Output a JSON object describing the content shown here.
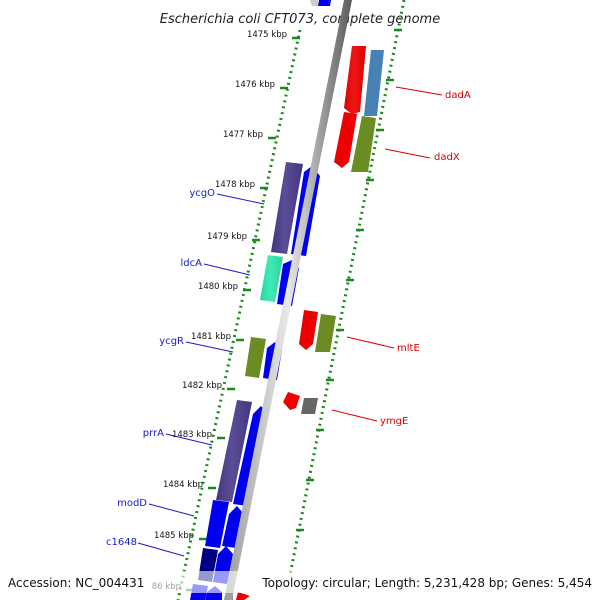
{
  "title": "Escherichia coli CFT073, complete genome",
  "footer": {
    "accession": "Accession: NC_004431",
    "summary": "Topology: circular; Length: 5,231,428 bp; Genes: 5,454"
  },
  "kbp_labels": [
    "1475 kbp",
    "1476 kbp",
    "1477 kbp",
    "1478 kbp",
    "1479 kbp",
    "1480 kbp",
    "1481 kbp",
    "1482 kbp",
    "1483 kbp",
    "1484 kbp",
    "1485 kbp",
    "86 kbp"
  ],
  "left_genes": [
    "ycgO",
    "ldcA",
    "ycgR",
    "prrA",
    "modD",
    "c1648"
  ],
  "right_genes": [
    "dadA",
    "dadX",
    "mltE",
    "ymgE"
  ],
  "colors": {
    "plus_strand": "#0000ee",
    "minus_strand": "#ee0000",
    "cog_purple": "#4a3c8c",
    "cog_green": "#6b8c23",
    "cog_teal": "#2ee8b0",
    "cog_steel": "#4682b4",
    "tick_green": "#1a8a1a"
  }
}
